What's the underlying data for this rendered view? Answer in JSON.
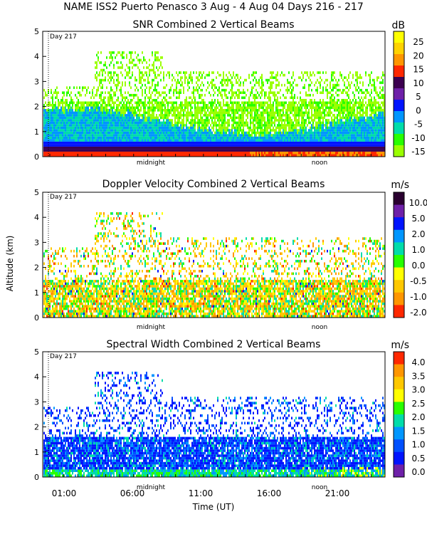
{
  "header": {
    "title": "NAME ISS2 Puerto Penasco    3 Aug -   4 Aug 04 Days 216 - 217"
  },
  "chart_data": [
    {
      "type": "heatmap",
      "title": "SNR Combined 2 Vertical Beams",
      "ylabel": "",
      "units": "dB",
      "day_marker": "Day 217",
      "midnight_label": "midnight",
      "noon_label": "noon",
      "yticks": [
        "0",
        "1",
        "2",
        "3",
        "4",
        "5"
      ],
      "ylim": [
        0,
        5
      ],
      "colorbar": {
        "labels": [
          "25",
          "20",
          "15",
          "10",
          "5",
          "0",
          "-5",
          "-10",
          "-15"
        ],
        "colors": [
          "#ffff00",
          "#ffd200",
          "#ff9600",
          "#ff2800",
          "#3c0050",
          "#6e20a8",
          "#0014ff",
          "#0096ff",
          "#00dcaa",
          "#28ff00",
          "#9aff00"
        ]
      }
    },
    {
      "type": "heatmap",
      "title": "Doppler Velocity Combined 2 Vertical Beams",
      "ylabel": "Altitude (km)",
      "units": "m/s",
      "day_marker": "Day 217",
      "midnight_label": "midnight",
      "noon_label": "noon",
      "yticks": [
        "0",
        "1",
        "2",
        "3",
        "4",
        "5"
      ],
      "ylim": [
        0,
        5
      ],
      "colorbar": {
        "labels": [
          "10.0",
          "5.0",
          "2.0",
          "1.0",
          "0.0",
          "-0.5",
          "-1.0",
          "-2.0"
        ],
        "colors": [
          "#2a0030",
          "#6e20a8",
          "#0014ff",
          "#0096ff",
          "#00dcaa",
          "#28ff00",
          "#ffff00",
          "#ffc800",
          "#ff9600",
          "#ff2800"
        ]
      }
    },
    {
      "type": "heatmap",
      "title": "Spectral Width Combined 2 Vertical Beams",
      "ylabel": "",
      "xlabel": "Time (UT)",
      "units": "m/s",
      "day_marker": "Day 217",
      "midnight_label": "midnight",
      "noon_label": "noon",
      "yticks": [
        "0",
        "1",
        "2",
        "3",
        "4",
        "5"
      ],
      "ylim": [
        0,
        5
      ],
      "xticks": [
        "01:00",
        "06:00",
        "11:00",
        "16:00",
        "21:00"
      ],
      "colorbar": {
        "labels": [
          "4.0",
          "3.5",
          "3.0",
          "2.5",
          "2.0",
          "1.5",
          "1.0",
          "0.5",
          "0.0"
        ],
        "colors": [
          "#ff2800",
          "#ff9600",
          "#ffc800",
          "#ffff00",
          "#28ff00",
          "#00dcaa",
          "#0096ff",
          "#0050ff",
          "#0014ff",
          "#6e20a8"
        ]
      }
    }
  ]
}
